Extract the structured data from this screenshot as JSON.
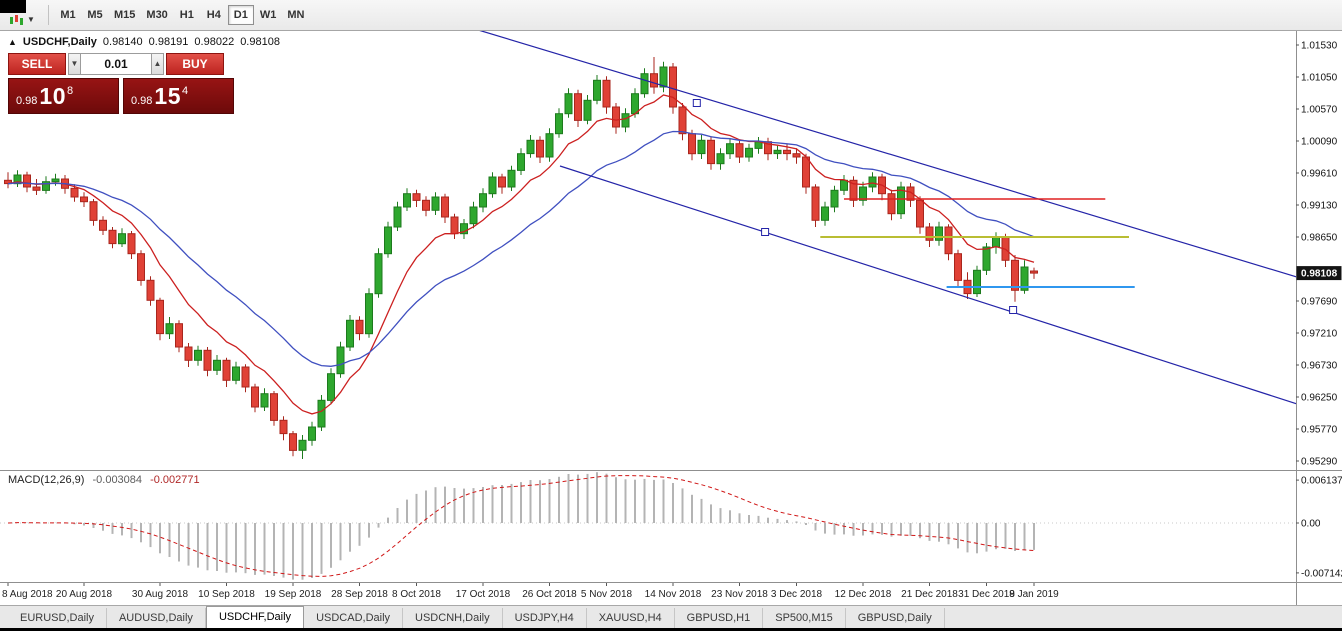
{
  "toolbar": {
    "timeframes": [
      "M1",
      "M5",
      "M15",
      "M30",
      "H1",
      "H4",
      "D1",
      "W1",
      "MN"
    ],
    "active_timeframe": "D1"
  },
  "chart_header": {
    "symbol": "USDCHF,Daily",
    "ohlc": [
      "0.98140",
      "0.98191",
      "0.98022",
      "0.98108"
    ]
  },
  "trade_panel": {
    "sell_label": "SELL",
    "buy_label": "BUY",
    "volume": "0.01",
    "sell_price": {
      "prefix": "0.98",
      "big": "10",
      "sup": "8"
    },
    "buy_price": {
      "prefix": "0.98",
      "big": "15",
      "sup": "4"
    }
  },
  "macd_label": {
    "name": "MACD(12,26,9)",
    "macd_value": "-0.003084",
    "signal_value": "-0.002771"
  },
  "tabs": {
    "items": [
      "EURUSD,Daily",
      "AUDUSD,Daily",
      "USDCHF,Daily",
      "USDCAD,Daily",
      "USDCNH,Daily",
      "USDJPY,H4",
      "XAUUSD,H4",
      "GBPUSD,H1",
      "SP500,M15",
      "GBPUSD,Daily"
    ],
    "active": "USDCHF,Daily"
  },
  "chart_data": {
    "type": "candlestick",
    "symbol": "USDCHF",
    "timeframe": "Daily",
    "current_price": "0.98108",
    "price_axis": {
      "ticks": [
        "1.01530",
        "1.01050",
        "1.00570",
        "1.00090",
        "0.99610",
        "0.99130",
        "0.98650",
        "0.97690",
        "0.97210",
        "0.96730",
        "0.96250",
        "0.95770",
        "0.95290"
      ]
    },
    "macd_axis": {
      "ticks": [
        [
          "0.006137",
          0.006137
        ],
        [
          "0.00",
          0
        ],
        [
          "-0.007142",
          -0.007142
        ]
      ]
    },
    "date_axis": {
      "ticks": [
        [
          "8 Aug 2018",
          0
        ],
        [
          "20 Aug 2018",
          8
        ],
        [
          "30 Aug 2018",
          16
        ],
        [
          "10 Sep 2018",
          23
        ],
        [
          "19 Sep 2018",
          30
        ],
        [
          "28 Sep 2018",
          37
        ],
        [
          "8 Oct 2018",
          43
        ],
        [
          "17 Oct 2018",
          50
        ],
        [
          "26 Oct 2018",
          57
        ],
        [
          "5 Nov 2018",
          63
        ],
        [
          "14 Nov 2018",
          70
        ],
        [
          "23 Nov 2018",
          77
        ],
        [
          "3 Dec 2018",
          83
        ],
        [
          "12 Dec 2018",
          90
        ],
        [
          "21 Dec 2018",
          97
        ],
        [
          "31 Dec 2018",
          103
        ],
        [
          "9 Jan 2019",
          108
        ]
      ]
    },
    "moving_averages": [
      {
        "name": "ma-fast",
        "period": 9,
        "color": "#cc2020"
      },
      {
        "name": "ma-slow",
        "period": 22,
        "color": "#4050c0"
      }
    ],
    "macd_settings": {
      "fast": 12,
      "slow": 26,
      "signal": 9,
      "hist_color": "#b4b4b4",
      "signal_color": "#d01818"
    },
    "colors": {
      "up": "#2ea72e",
      "up_border": "#1d7a1d",
      "down": "#e04136",
      "down_border": "#a8261d",
      "trendline": "#2424a8",
      "badge_bg": "#141414",
      "badge_text": "#ffffff"
    },
    "objects": {
      "trendlines": [
        {
          "name": "descending-channel-upper",
          "from_bar": 49.5,
          "from_price": 1.01755,
          "to_bar": 135.6,
          "to_price": 0.98053,
          "handles": [
            [
              72.5,
              1.0066
            ]
          ]
        },
        {
          "name": "descending-channel-lower",
          "from_bar": 58.1,
          "from_price": 0.99715,
          "to_bar": 135.6,
          "to_price": 0.9615,
          "handles": [
            [
              79.7,
              0.98725
            ],
            [
              105.8,
              0.97555
            ]
          ]
        }
      ],
      "hlines": [
        {
          "name": "resistance-line-red",
          "price": 0.9922,
          "from_bar": 88.0,
          "to_bar": 115.5,
          "color": "#e02020",
          "width": 1.6
        },
        {
          "name": "level-line-yellow",
          "price": 0.9865,
          "from_bar": 85.5,
          "to_bar": 118.0,
          "color": "#b9bd33",
          "width": 2
        },
        {
          "name": "support-line-blue",
          "price": 0.979,
          "from_bar": 98.8,
          "to_bar": 118.6,
          "color": "#2f97ef",
          "width": 2
        }
      ]
    },
    "candles": [
      [
        0.995,
        0.9962,
        0.9938,
        0.9945
      ],
      [
        0.9945,
        0.9965,
        0.994,
        0.9958
      ],
      [
        0.9958,
        0.9963,
        0.9932,
        0.994
      ],
      [
        0.994,
        0.9952,
        0.9928,
        0.9935
      ],
      [
        0.9935,
        0.9956,
        0.993,
        0.9948
      ],
      [
        0.9948,
        0.996,
        0.9942,
        0.9952
      ],
      [
        0.9952,
        0.9958,
        0.993,
        0.9938
      ],
      [
        0.9938,
        0.9944,
        0.9918,
        0.9925
      ],
      [
        0.9925,
        0.9932,
        0.991,
        0.9918
      ],
      [
        0.9918,
        0.9922,
        0.9882,
        0.989
      ],
      [
        0.989,
        0.9896,
        0.9868,
        0.9875
      ],
      [
        0.9875,
        0.988,
        0.9848,
        0.9855
      ],
      [
        0.9855,
        0.9878,
        0.985,
        0.987
      ],
      [
        0.987,
        0.9874,
        0.9832,
        0.984
      ],
      [
        0.984,
        0.9845,
        0.9792,
        0.98
      ],
      [
        0.98,
        0.9806,
        0.9762,
        0.977
      ],
      [
        0.977,
        0.9774,
        0.971,
        0.972
      ],
      [
        0.972,
        0.9745,
        0.9712,
        0.9735
      ],
      [
        0.9735,
        0.974,
        0.9692,
        0.97
      ],
      [
        0.97,
        0.9706,
        0.967,
        0.968
      ],
      [
        0.968,
        0.9702,
        0.9672,
        0.9695
      ],
      [
        0.9695,
        0.97,
        0.9656,
        0.9665
      ],
      [
        0.9665,
        0.9688,
        0.9658,
        0.968
      ],
      [
        0.968,
        0.9684,
        0.964,
        0.965
      ],
      [
        0.965,
        0.9678,
        0.9644,
        0.967
      ],
      [
        0.967,
        0.9674,
        0.9632,
        0.964
      ],
      [
        0.964,
        0.9645,
        0.9602,
        0.961
      ],
      [
        0.961,
        0.9638,
        0.9604,
        0.963
      ],
      [
        0.963,
        0.9634,
        0.9582,
        0.959
      ],
      [
        0.959,
        0.9596,
        0.956,
        0.957
      ],
      [
        0.957,
        0.9574,
        0.9536,
        0.9545
      ],
      [
        0.9545,
        0.9568,
        0.9532,
        0.956
      ],
      [
        0.956,
        0.9588,
        0.9552,
        0.958
      ],
      [
        0.958,
        0.9628,
        0.9574,
        0.962
      ],
      [
        0.962,
        0.9668,
        0.9614,
        0.966
      ],
      [
        0.966,
        0.9708,
        0.9654,
        0.97
      ],
      [
        0.97,
        0.9748,
        0.9694,
        0.974
      ],
      [
        0.974,
        0.9746,
        0.971,
        0.972
      ],
      [
        0.972,
        0.9788,
        0.9714,
        0.978
      ],
      [
        0.978,
        0.9848,
        0.9774,
        0.984
      ],
      [
        0.984,
        0.9888,
        0.9834,
        0.988
      ],
      [
        0.988,
        0.9918,
        0.9874,
        0.991
      ],
      [
        0.991,
        0.9938,
        0.9904,
        0.993
      ],
      [
        0.993,
        0.9936,
        0.991,
        0.992
      ],
      [
        0.992,
        0.9926,
        0.9896,
        0.9905
      ],
      [
        0.9905,
        0.9932,
        0.9898,
        0.9925
      ],
      [
        0.9925,
        0.993,
        0.9886,
        0.9895
      ],
      [
        0.9895,
        0.99,
        0.9862,
        0.987
      ],
      [
        0.987,
        0.9892,
        0.9862,
        0.9885
      ],
      [
        0.9885,
        0.9918,
        0.9878,
        0.991
      ],
      [
        0.991,
        0.9938,
        0.9902,
        0.993
      ],
      [
        0.993,
        0.9962,
        0.9924,
        0.9955
      ],
      [
        0.9955,
        0.996,
        0.993,
        0.994
      ],
      [
        0.994,
        0.9972,
        0.9934,
        0.9965
      ],
      [
        0.9965,
        0.9998,
        0.9958,
        0.999
      ],
      [
        0.999,
        1.0018,
        0.9984,
        1.001
      ],
      [
        1.001,
        1.0016,
        0.9976,
        0.9985
      ],
      [
        0.9985,
        1.0028,
        0.9978,
        1.002
      ],
      [
        1.002,
        1.0058,
        1.0014,
        1.005
      ],
      [
        1.005,
        1.0088,
        1.0044,
        1.008
      ],
      [
        1.008,
        1.0086,
        1.003,
        1.004
      ],
      [
        1.004,
        1.0078,
        1.0034,
        1.007
      ],
      [
        1.007,
        1.0108,
        1.0064,
        1.01
      ],
      [
        1.01,
        1.0106,
        1.005,
        1.006
      ],
      [
        1.006,
        1.0066,
        1.002,
        1.003
      ],
      [
        1.003,
        1.0058,
        1.0022,
        1.005
      ],
      [
        1.005,
        1.0088,
        1.0044,
        1.008
      ],
      [
        1.008,
        1.0118,
        1.0074,
        1.011
      ],
      [
        1.011,
        1.0135,
        1.008,
        1.009
      ],
      [
        1.009,
        1.0128,
        1.0082,
        1.012
      ],
      [
        1.012,
        1.0126,
        1.005,
        1.006
      ],
      [
        1.006,
        1.0066,
        1.001,
        1.002
      ],
      [
        1.002,
        1.0026,
        0.998,
        0.999
      ],
      [
        0.999,
        1.0018,
        0.9982,
        1.001
      ],
      [
        1.001,
        1.0016,
        0.9966,
        0.9975
      ],
      [
        0.9975,
        0.9998,
        0.9966,
        0.999
      ],
      [
        0.999,
        1.0012,
        0.9982,
        1.0005
      ],
      [
        1.0005,
        1.001,
        0.9976,
        0.9985
      ],
      [
        0.9985,
        1.0005,
        0.9978,
        0.9998
      ],
      [
        0.9998,
        1.0015,
        0.999,
        1.0008
      ],
      [
        1.0008,
        1.0014,
        0.998,
        0.999
      ],
      [
        0.999,
        1.0002,
        0.9982,
        0.9995
      ],
      [
        0.9995,
        1.0004,
        0.998,
        0.999
      ],
      [
        0.999,
        0.9998,
        0.9975,
        0.9985
      ],
      [
        0.9985,
        0.999,
        0.993,
        0.994
      ],
      [
        0.994,
        0.9944,
        0.988,
        0.989
      ],
      [
        0.989,
        0.9918,
        0.9882,
        0.991
      ],
      [
        0.991,
        0.9942,
        0.9902,
        0.9935
      ],
      [
        0.9935,
        0.9958,
        0.9928,
        0.995
      ],
      [
        0.995,
        0.9956,
        0.991,
        0.992
      ],
      [
        0.992,
        0.9948,
        0.9912,
        0.994
      ],
      [
        0.994,
        0.9962,
        0.9932,
        0.9955
      ],
      [
        0.9955,
        0.996,
        0.992,
        0.993
      ],
      [
        0.993,
        0.9936,
        0.989,
        0.99
      ],
      [
        0.99,
        0.9948,
        0.9892,
        0.994
      ],
      [
        0.994,
        0.9946,
        0.991,
        0.992
      ],
      [
        0.992,
        0.9926,
        0.987,
        0.988
      ],
      [
        0.988,
        0.9886,
        0.985,
        0.986
      ],
      [
        0.986,
        0.9888,
        0.9852,
        0.988
      ],
      [
        0.988,
        0.9884,
        0.983,
        0.984
      ],
      [
        0.984,
        0.9846,
        0.979,
        0.98
      ],
      [
        0.98,
        0.9812,
        0.9772,
        0.978
      ],
      [
        0.978,
        0.9822,
        0.9775,
        0.9815
      ],
      [
        0.9815,
        0.9856,
        0.9808,
        0.985
      ],
      [
        0.985,
        0.9872,
        0.984,
        0.9865
      ],
      [
        0.9865,
        0.987,
        0.982,
        0.983
      ],
      [
        0.983,
        0.9838,
        0.9768,
        0.9785
      ],
      [
        0.9785,
        0.983,
        0.978,
        0.982
      ],
      [
        0.9814,
        0.98191,
        0.98022,
        0.98108
      ]
    ]
  }
}
